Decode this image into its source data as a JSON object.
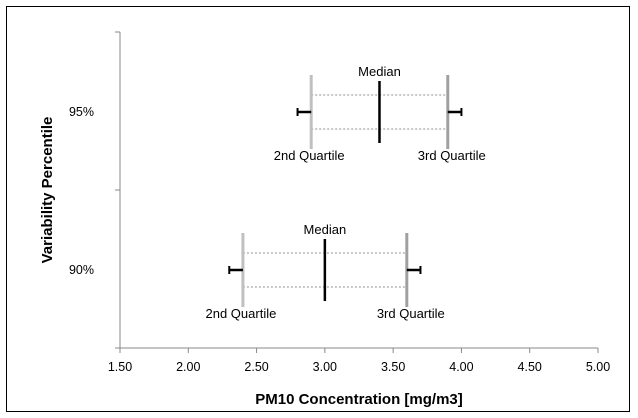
{
  "chart_data": {
    "type": "boxplot",
    "title": "",
    "xlabel": "PM10 Concentration [mg/m3]",
    "ylabel": "Variability Percentile",
    "xlim": [
      1.5,
      5.0
    ],
    "x_ticks": [
      "1.50",
      "2.00",
      "2.50",
      "3.00",
      "3.50",
      "4.00",
      "4.50",
      "5.00"
    ],
    "x_tick_values": [
      1.5,
      2.0,
      2.5,
      3.0,
      3.5,
      4.0,
      4.5,
      5.0
    ],
    "grid": false,
    "colors": {
      "quartile": "#c0c0c0",
      "q3": "#a0a0a0",
      "median": "#000000",
      "whisker": "#000000",
      "box_edge": "#909090"
    },
    "series": [
      {
        "category": "95%",
        "q2": 2.9,
        "median": 3.4,
        "q3": 3.9,
        "whisker_low": 2.8,
        "whisker_high": 4.0,
        "median_label": "Median",
        "q2_label": "2nd Quartile",
        "q3_label": "3rd Quartile"
      },
      {
        "category": "90%",
        "q2": 2.4,
        "median": 3.0,
        "q3": 3.6,
        "whisker_low": 2.3,
        "whisker_high": 3.7,
        "median_label": "Median",
        "q2_label": "2nd Quartile",
        "q3_label": "3rd Quartile"
      }
    ]
  }
}
